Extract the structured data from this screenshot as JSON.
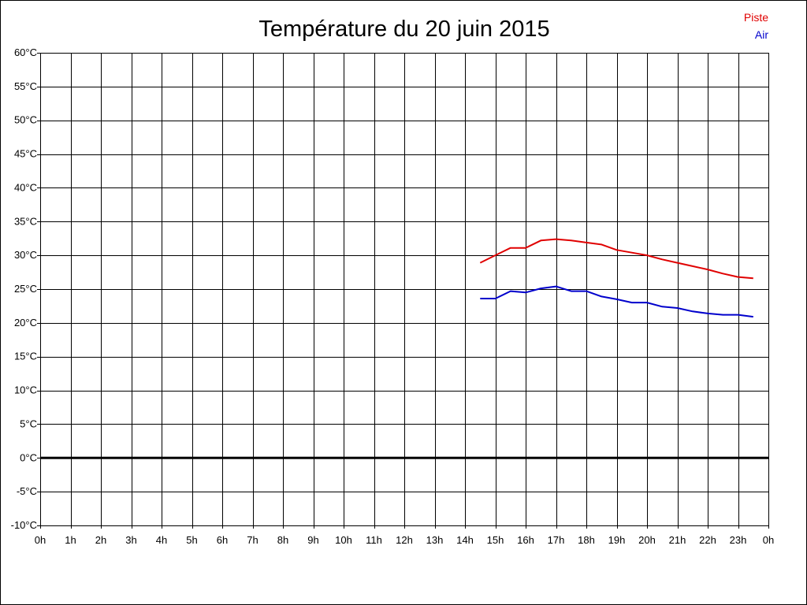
{
  "chart_data": {
    "type": "line",
    "title": "Température du 20 juin 2015",
    "xlabel": "",
    "ylabel": "",
    "xlim": [
      0,
      24
    ],
    "ylim": [
      -10,
      60
    ],
    "grid": true,
    "legend_position": "top-right",
    "x_tick_values": [
      0,
      1,
      2,
      3,
      4,
      5,
      6,
      7,
      8,
      9,
      10,
      11,
      12,
      13,
      14,
      15,
      16,
      17,
      18,
      19,
      20,
      21,
      22,
      23,
      24
    ],
    "x_tick_labels": [
      "0h",
      "1h",
      "2h",
      "3h",
      "4h",
      "5h",
      "6h",
      "7h",
      "8h",
      "9h",
      "10h",
      "11h",
      "12h",
      "13h",
      "14h",
      "15h",
      "16h",
      "17h",
      "18h",
      "19h",
      "20h",
      "21h",
      "22h",
      "23h",
      "0h"
    ],
    "y_tick_values": [
      60,
      55,
      50,
      45,
      40,
      35,
      30,
      25,
      20,
      15,
      10,
      5,
      0,
      -5,
      -10
    ],
    "y_tick_labels": [
      "60°C",
      "55°C",
      "50°C",
      "45°C",
      "40°C",
      "35°C",
      "30°C",
      "25°C",
      "20°C",
      "15°C",
      "10°C",
      "5°C",
      "0°C",
      "-5°C",
      "-10°C"
    ],
    "zero_line": 0,
    "series": [
      {
        "name": "Piste",
        "color": "#e00000",
        "x": [
          14.5,
          15.0,
          15.5,
          16.0,
          16.5,
          17.0,
          17.5,
          18.0,
          18.5,
          19.0,
          19.5,
          20.0,
          20.5,
          21.0,
          21.5,
          22.0,
          22.5,
          23.0,
          23.5
        ],
        "y": [
          28.9,
          30.0,
          31.1,
          31.1,
          32.2,
          32.4,
          32.2,
          31.9,
          31.6,
          30.8,
          30.4,
          30.0,
          29.4,
          28.9,
          28.4,
          27.9,
          27.3,
          26.8,
          26.6
        ]
      },
      {
        "name": "Air",
        "color": "#0000cc",
        "x": [
          14.5,
          15.0,
          15.5,
          16.0,
          16.5,
          17.0,
          17.5,
          18.0,
          18.5,
          19.0,
          19.5,
          20.0,
          20.5,
          21.0,
          21.5,
          22.0,
          22.5,
          23.0,
          23.5
        ],
        "y": [
          23.6,
          23.6,
          24.7,
          24.5,
          25.1,
          25.4,
          24.7,
          24.7,
          23.9,
          23.5,
          23.0,
          23.0,
          22.4,
          22.2,
          21.7,
          21.4,
          21.2,
          21.2,
          20.9
        ]
      }
    ]
  }
}
